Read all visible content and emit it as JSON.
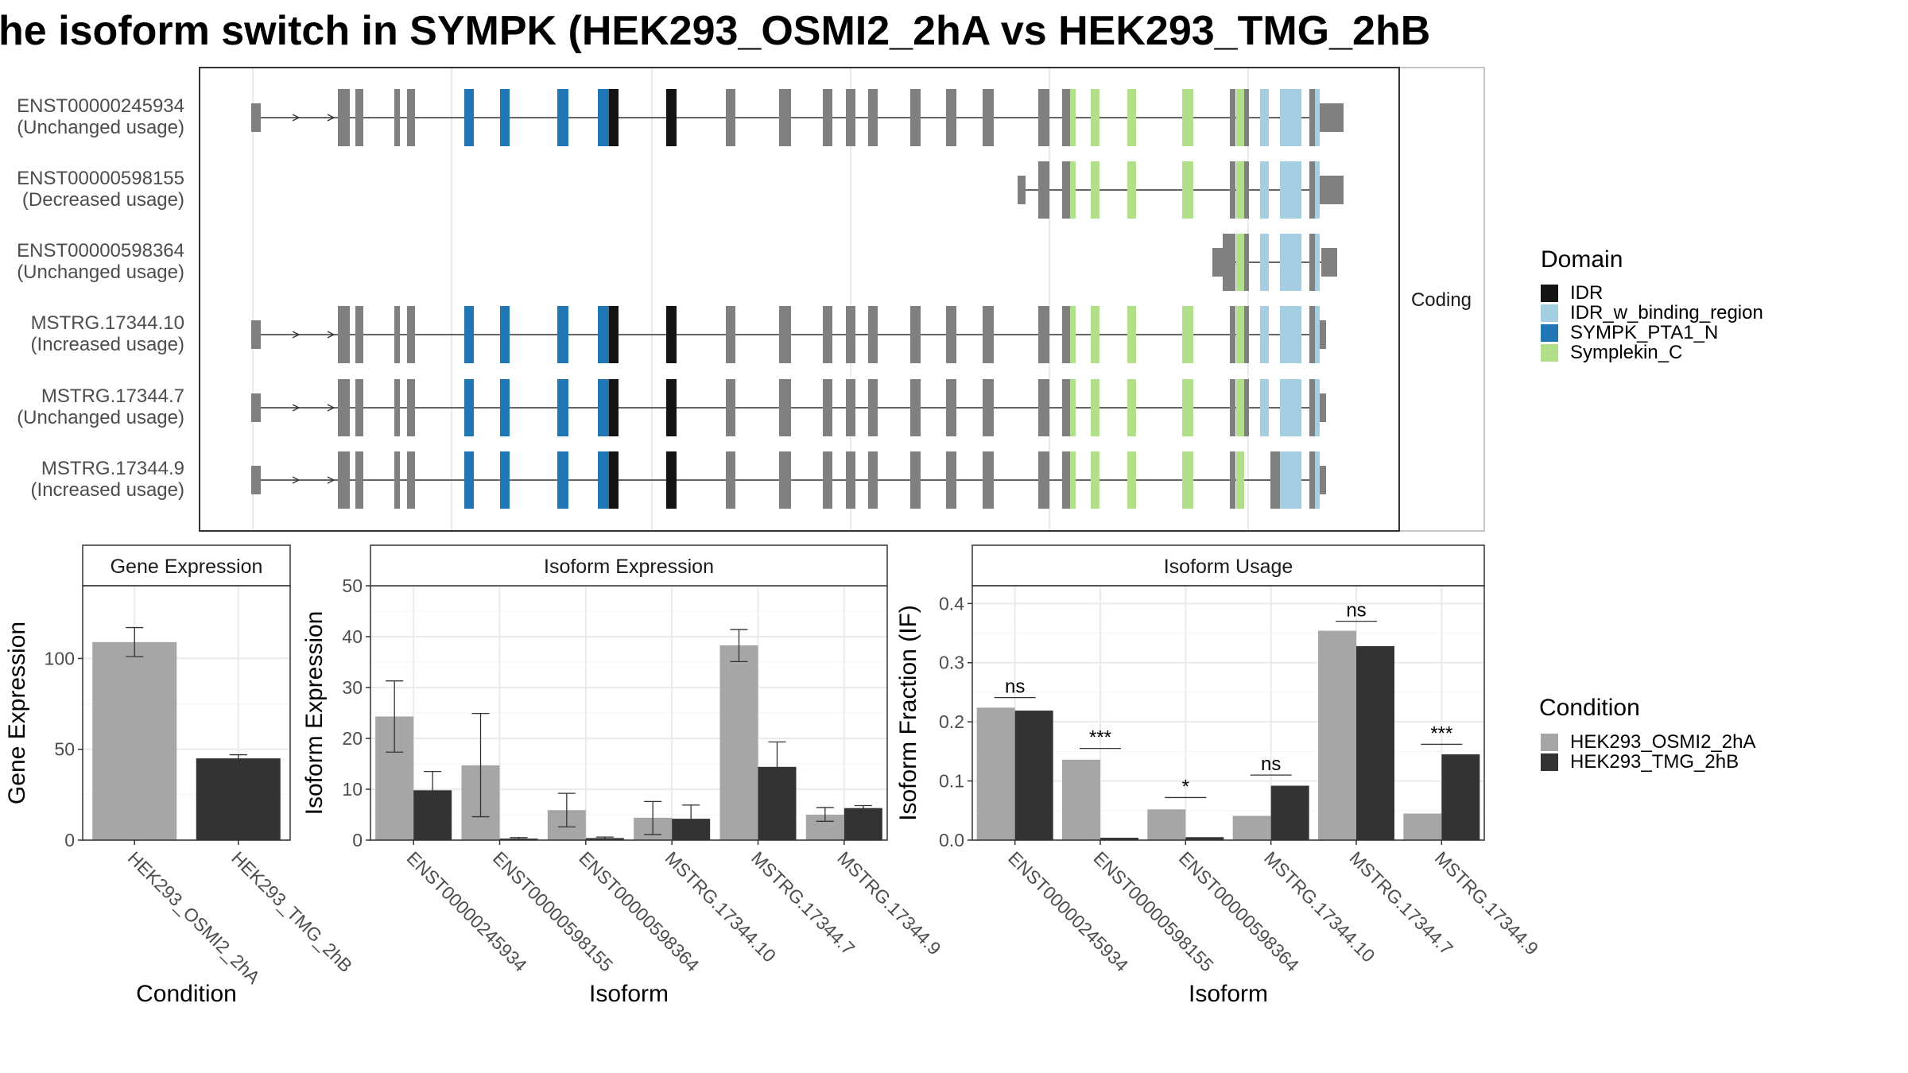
{
  "title": "he isoform switch in SYMPK (HEK293_OSMI2_2hA vs HEK293_TMG_2hB",
  "colors": {
    "condition_a": "#a6a6a6",
    "condition_b": "#333333",
    "exon": "#808080",
    "IDR": "#141414",
    "IDR_w_binding_region": "#a6cee3",
    "SYMPK_PTA1_N": "#1f78b4",
    "Symplekin_C": "#b2df8a"
  },
  "structure_panel": {
    "facet_label": "Coding",
    "transcripts": [
      {
        "id": "ENST00000245934",
        "usage": "(Unchanged usage)"
      },
      {
        "id": "ENST00000598155",
        "usage": "(Decreased usage)"
      },
      {
        "id": "ENST00000598364",
        "usage": "(Unchanged usage)"
      },
      {
        "id": "MSTRG.17344.10",
        "usage": "(Increased usage)"
      },
      {
        "id": "MSTRG.17344.7",
        "usage": "(Unchanged usage)"
      },
      {
        "id": "MSTRG.17344.9",
        "usage": "(Increased usage)"
      }
    ]
  },
  "domain_legend": {
    "title": "Domain",
    "items": [
      {
        "label": "IDR",
        "color_key": "IDR"
      },
      {
        "label": "IDR_w_binding_region",
        "color_key": "IDR_w_binding_region"
      },
      {
        "label": "SYMPK_PTA1_N",
        "color_key": "SYMPK_PTA1_N"
      },
      {
        "label": "Symplekin_C",
        "color_key": "Symplekin_C"
      }
    ]
  },
  "condition_legend": {
    "title": "Condition",
    "items": [
      "HEK293_OSMI2_2hA",
      "HEK293_TMG_2hB"
    ]
  },
  "chart_data": [
    {
      "type": "bar",
      "title": "Gene Expression",
      "xlabel": "Condition",
      "ylabel": "Gene Expression",
      "categories": [
        "HEK293_OSMI2_2hA",
        "HEK293_TMG_2hB"
      ],
      "values": [
        109,
        45
      ],
      "errors": [
        [
          101,
          117
        ],
        [
          43,
          47
        ]
      ],
      "ylim": [
        0,
        140
      ],
      "yticks": [
        0,
        50,
        100
      ]
    },
    {
      "type": "bar",
      "title": "Isoform Expression",
      "xlabel": "Isoform",
      "ylabel": "Isoform Expression",
      "categories": [
        "ENST00000245934",
        "ENST00000598155",
        "ENST00000598364",
        "MSTRG.17344.10",
        "MSTRG.17344.7",
        "MSTRG.17344.9"
      ],
      "series": [
        {
          "name": "HEK293_OSMI2_2hA",
          "values": [
            24.3,
            14.7,
            5.9,
            4.4,
            38.3,
            5.0
          ],
          "errors": [
            [
              17.3,
              31.3
            ],
            [
              4.6,
              24.9
            ],
            [
              2.6,
              9.2
            ],
            [
              1.1,
              7.6
            ],
            [
              35.1,
              41.4
            ],
            [
              3.7,
              6.4
            ]
          ]
        },
        {
          "name": "HEK293_TMG_2hB",
          "values": [
            9.8,
            0.3,
            0.4,
            4.2,
            14.4,
            6.3
          ],
          "errors": [
            [
              6.1,
              13.5
            ],
            [
              0.2,
              0.5
            ],
            [
              0.2,
              0.6
            ],
            [
              1.6,
              6.9
            ],
            [
              9.5,
              19.3
            ],
            [
              5.7,
              6.8
            ]
          ]
        }
      ],
      "ylim": [
        0,
        50
      ],
      "yticks": [
        0,
        10,
        20,
        30,
        40,
        50
      ]
    },
    {
      "type": "bar",
      "title": "Isoform Usage",
      "xlabel": "Isoform",
      "ylabel": "Isoform Fraction (IF)",
      "categories": [
        "ENST00000245934",
        "ENST00000598155",
        "ENST00000598364",
        "MSTRG.17344.10",
        "MSTRG.17344.7",
        "MSTRG.17344.9"
      ],
      "series": [
        {
          "name": "HEK293_OSMI2_2hA",
          "values": [
            0.224,
            0.136,
            0.052,
            0.041,
            0.354,
            0.045
          ]
        },
        {
          "name": "HEK293_TMG_2hB",
          "values": [
            0.219,
            0.004,
            0.005,
            0.092,
            0.328,
            0.145
          ]
        }
      ],
      "significance": [
        "ns",
        "***",
        "*",
        "ns",
        "ns",
        "***"
      ],
      "sig_levels": [
        0.241,
        0.155,
        0.072,
        0.11,
        0.37,
        0.162
      ],
      "ylim": [
        0,
        0.43
      ],
      "yticks": [
        "0.0",
        "0.1",
        "0.2",
        "0.3",
        "0.4"
      ]
    }
  ]
}
